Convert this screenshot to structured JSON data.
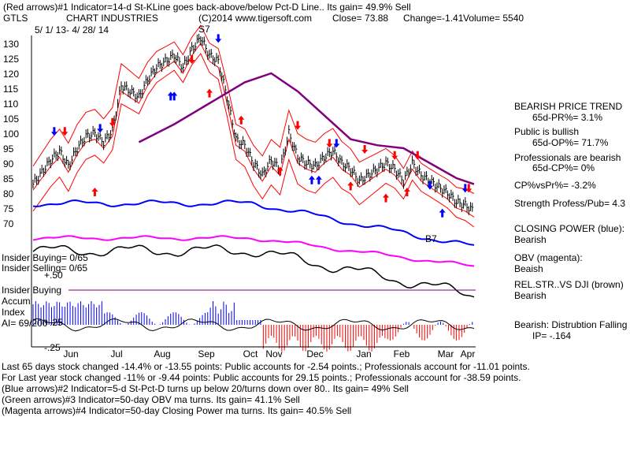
{
  "header": {
    "line1": "(Red arrows)#1 Indicator=14-d St-KLine goes back-above/below Pct-D Line.. Its gain= 49.9% Sell",
    "ticker": "GTLS",
    "company": "CHART INDUSTRIES",
    "copyright": "(C)2014 www.tigersoft.com",
    "close": "Close=  73.88",
    "change": "Change=-1.41",
    "volume": "Volume= 5540",
    "daterange": "5/ 1/ 13-  4/ 28/ 14"
  },
  "right_panel": {
    "trend_title": "BEARISH PRICE TREND",
    "trend_value": "65d-PR%= 3.1%",
    "public_title": "Public is bullish",
    "public_value": "65d-OP%= 71.7%",
    "pros_title": "Professionals are bearish",
    "pros_value": "65d-CP%= 0%",
    "cpvspr": "CP%vsPr%= -3.2%",
    "strength": "Strength Profess/Pub= 4.3",
    "closing_power_label": "CLOSING POWER (blue):",
    "closing_power_value": "Bearish",
    "obv_label": "OBV (magenta):",
    "obv_value": "Beaish",
    "relstr_label": "REL.STR..VS DJI (brown)",
    "relstr_value": "Bearish",
    "distribution": "Bearish: Distrubtion Falling",
    "ip": "IP= -.164"
  },
  "left_labels": {
    "insider_buying": "Insider Buying= 0/65",
    "insider_selling": "Insider Selling= 0/65",
    "plus50": "+.50",
    "insider_buying2": "Insider Buying",
    "accum": "Accum",
    "index": "Index",
    "ai": "AI= 69/200",
    "plus25": "+.25",
    "minus25": "-.25",
    "s7": "S7",
    "b7": "B7"
  },
  "footer": {
    "line1": "Last 65 days stock changed -14.4% or -13.55 points:  Public accounts for -2.54 points.;  Professionals account for -11.01 points.",
    "line2": "For Last year stock changed -11% or -9.44 points:  Public accounts for 29.15 points.;  Professionals account for -38.59 points.",
    "line3": "(Blue arrows)#2 Indicator=5-d St-Pct-D turns up below 20/turns down over 80.. Its gain= 49% Sell",
    "line4": "(Green arrows)#3 Indicator=50-day OBV ma turns. Its gain= 41.1% Sell",
    "line5": "(Magenta arrows)#4 Indicator=50-day Closing Power ma turns. Its gain= 40.5% Sell"
  },
  "colors": {
    "price": "#000000",
    "bands": "#ff0000",
    "ma": "#800080",
    "closing_power": "#0000ff",
    "obv": "#ff00ff",
    "relstr": "#000000",
    "accum_pos": "#0000ff",
    "accum_neg": "#ff0000"
  },
  "chart_data": {
    "type": "line",
    "ylim": [
      65,
      135
    ],
    "y_ticks": [
      130,
      125,
      120,
      115,
      110,
      105,
      100,
      95,
      90,
      85,
      80,
      75,
      70
    ],
    "months": [
      "Jun",
      "Jul",
      "Aug",
      "Sep",
      "Oct",
      "Nov",
      "Dec",
      "Jan",
      "Feb",
      "Mar",
      "Apr"
    ],
    "price_series": {
      "x": [
        0,
        5,
        10,
        15,
        20,
        25,
        30,
        35,
        40,
        45,
        50,
        55,
        60,
        65,
        70,
        75,
        80,
        85,
        90,
        95,
        100,
        105,
        110,
        115,
        120,
        125,
        130,
        135,
        140,
        145,
        150,
        155,
        160,
        165,
        170,
        175,
        180,
        185,
        190,
        195,
        200,
        205,
        210,
        215,
        220,
        225,
        230,
        235,
        240,
        245,
        250
      ],
      "values": [
        83,
        87,
        91,
        94,
        89,
        95,
        99,
        100,
        97,
        101,
        116,
        114,
        112,
        118,
        122,
        124,
        126,
        122,
        128,
        132,
        126,
        124,
        112,
        98,
        96,
        90,
        86,
        91,
        88,
        100,
        92,
        90,
        89,
        92,
        94,
        90,
        88,
        84,
        86,
        88,
        90,
        88,
        84,
        90,
        86,
        84,
        82,
        80,
        77,
        76,
        74
      ]
    },
    "ma_series": {
      "x": [
        60,
        80,
        100,
        120,
        135,
        150,
        165,
        180,
        195,
        210,
        225,
        240,
        250
      ],
      "values": [
        97,
        103,
        110,
        117,
        120,
        114,
        106,
        98,
        96,
        95,
        90,
        85,
        83
      ]
    }
  }
}
